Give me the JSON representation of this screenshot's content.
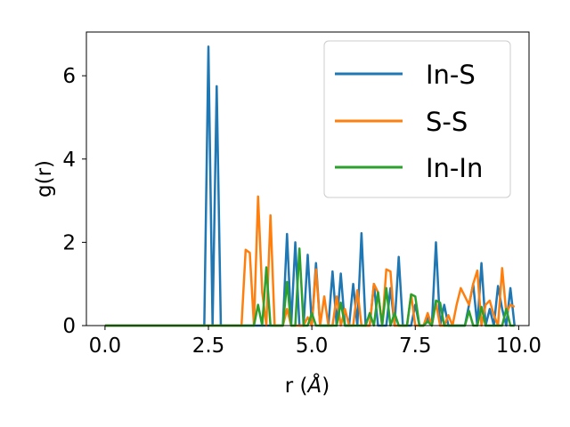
{
  "chart_data": {
    "type": "line",
    "title": "",
    "xlabel_main": "r (",
    "xlabel_unit": "Å",
    "xlabel_close": ")",
    "ylabel": "g(r)",
    "xlim": [
      -0.45,
      10.25
    ],
    "ylim": [
      0,
      7.05
    ],
    "xticks": [
      0.0,
      2.5,
      5.0,
      7.5,
      10.0
    ],
    "xtick_labels": [
      "0.0",
      "2.5",
      "5.0",
      "7.5",
      "10.0"
    ],
    "yticks": [
      0,
      2,
      4,
      6
    ],
    "ytick_labels": [
      "0",
      "2",
      "4",
      "6"
    ],
    "grid": false,
    "legend": "top-right",
    "series": [
      {
        "name": "In-S",
        "color": "#1f77b4",
        "x": [
          0.0,
          2.3,
          2.4,
          2.5,
          2.6,
          2.7,
          2.8,
          2.9,
          3.9,
          4.0,
          4.1,
          4.3,
          4.4,
          4.5,
          4.6,
          4.7,
          4.8,
          4.9,
          5.0,
          5.1,
          5.2,
          5.3,
          5.4,
          5.5,
          5.6,
          5.7,
          5.8,
          5.9,
          6.0,
          6.1,
          6.2,
          6.3,
          6.4,
          6.5,
          6.6,
          6.7,
          6.8,
          6.9,
          7.0,
          7.1,
          7.2,
          7.3,
          7.4,
          7.5,
          7.6,
          7.7,
          7.8,
          7.9,
          8.0,
          8.1,
          8.2,
          8.3,
          8.4,
          8.5,
          8.6,
          8.7,
          8.8,
          8.9,
          9.0,
          9.1,
          9.2,
          9.3,
          9.4,
          9.5,
          9.6,
          9.7,
          9.8,
          9.9
        ],
        "y": [
          0,
          0,
          0,
          6.7,
          0,
          5.75,
          0,
          0,
          0,
          0,
          0,
          0,
          2.2,
          0,
          2.0,
          0,
          0,
          1.7,
          0,
          1.5,
          0,
          0,
          0,
          1.3,
          0,
          1.25,
          0,
          0,
          1.0,
          0,
          2.22,
          0,
          0,
          1.0,
          0,
          0,
          0,
          0.9,
          0,
          1.65,
          0,
          0,
          0,
          0.5,
          0,
          0,
          0.2,
          0,
          2.0,
          0,
          0.5,
          0,
          0,
          0,
          0,
          0,
          0.5,
          1.0,
          0,
          1.5,
          0,
          0.4,
          0,
          0.95,
          0.4,
          0,
          0.9,
          0
        ]
      },
      {
        "name": "S-S",
        "color": "#ff7f0e",
        "x": [
          0.0,
          3.3,
          3.4,
          3.5,
          3.6,
          3.7,
          3.8,
          3.9,
          4.0,
          4.1,
          4.2,
          4.3,
          4.4,
          4.5,
          4.6,
          4.7,
          4.8,
          4.9,
          5.0,
          5.1,
          5.2,
          5.3,
          5.4,
          5.5,
          5.6,
          5.7,
          5.8,
          5.9,
          6.0,
          6.1,
          6.2,
          6.3,
          6.4,
          6.5,
          6.6,
          6.7,
          6.8,
          6.9,
          7.0,
          7.1,
          7.2,
          7.3,
          7.4,
          7.5,
          7.6,
          7.7,
          7.8,
          7.9,
          8.0,
          8.1,
          8.2,
          8.3,
          8.4,
          8.5,
          8.6,
          8.7,
          8.8,
          8.9,
          9.0,
          9.1,
          9.2,
          9.3,
          9.4,
          9.5,
          9.6,
          9.7,
          9.8,
          9.9
        ],
        "y": [
          0,
          0,
          1.82,
          1.75,
          0,
          3.1,
          0.8,
          0,
          2.65,
          0,
          0,
          0,
          0.4,
          0,
          0,
          0,
          0,
          0.2,
          0,
          1.35,
          0,
          0.7,
          0,
          0,
          0.7,
          0,
          0.4,
          0,
          0,
          0.85,
          0,
          0,
          0,
          1.0,
          0.8,
          0,
          1.35,
          1.3,
          0,
          0,
          0,
          0,
          0.75,
          0,
          0,
          0,
          0.3,
          0,
          0.55,
          0,
          0,
          0.25,
          0,
          0.5,
          0.9,
          0.7,
          0.5,
          1.0,
          1.32,
          0,
          0.5,
          0.6,
          0.25,
          0,
          1.38,
          0.3,
          0.5,
          0.45
        ]
      },
      {
        "name": "In-In",
        "color": "#2ca02c",
        "x": [
          0.0,
          3.6,
          3.7,
          3.8,
          3.9,
          4.0,
          4.1,
          4.2,
          4.3,
          4.4,
          4.5,
          4.6,
          4.7,
          4.8,
          4.9,
          5.0,
          5.1,
          5.2,
          5.3,
          5.4,
          5.5,
          5.6,
          5.7,
          5.8,
          5.9,
          6.0,
          6.1,
          6.2,
          6.3,
          6.4,
          6.5,
          6.6,
          6.7,
          6.8,
          6.9,
          7.0,
          7.1,
          7.2,
          7.3,
          7.4,
          7.5,
          7.6,
          7.7,
          7.8,
          7.9,
          8.0,
          8.1,
          8.2,
          8.3,
          8.4,
          8.5,
          8.6,
          8.7,
          8.8,
          8.9,
          9.0,
          9.1,
          9.2,
          9.3,
          9.4,
          9.5,
          9.6,
          9.7,
          9.8,
          9.9
        ],
        "y": [
          0,
          0,
          0.5,
          0,
          1.4,
          0,
          0,
          0,
          0,
          1.05,
          0,
          0,
          1.85,
          0,
          0,
          0.3,
          0,
          0,
          0,
          0,
          0,
          0,
          0.55,
          0,
          0,
          0,
          0,
          0,
          0,
          0.3,
          0,
          0.8,
          0,
          0.9,
          0,
          0.3,
          0,
          0,
          0,
          0.75,
          0.7,
          0,
          0,
          0.1,
          0,
          0.6,
          0.55,
          0,
          0,
          0,
          0,
          0,
          0,
          0.35,
          0,
          0,
          0.45,
          0,
          0,
          0,
          0,
          0,
          0.4,
          0,
          0
        ]
      }
    ]
  }
}
